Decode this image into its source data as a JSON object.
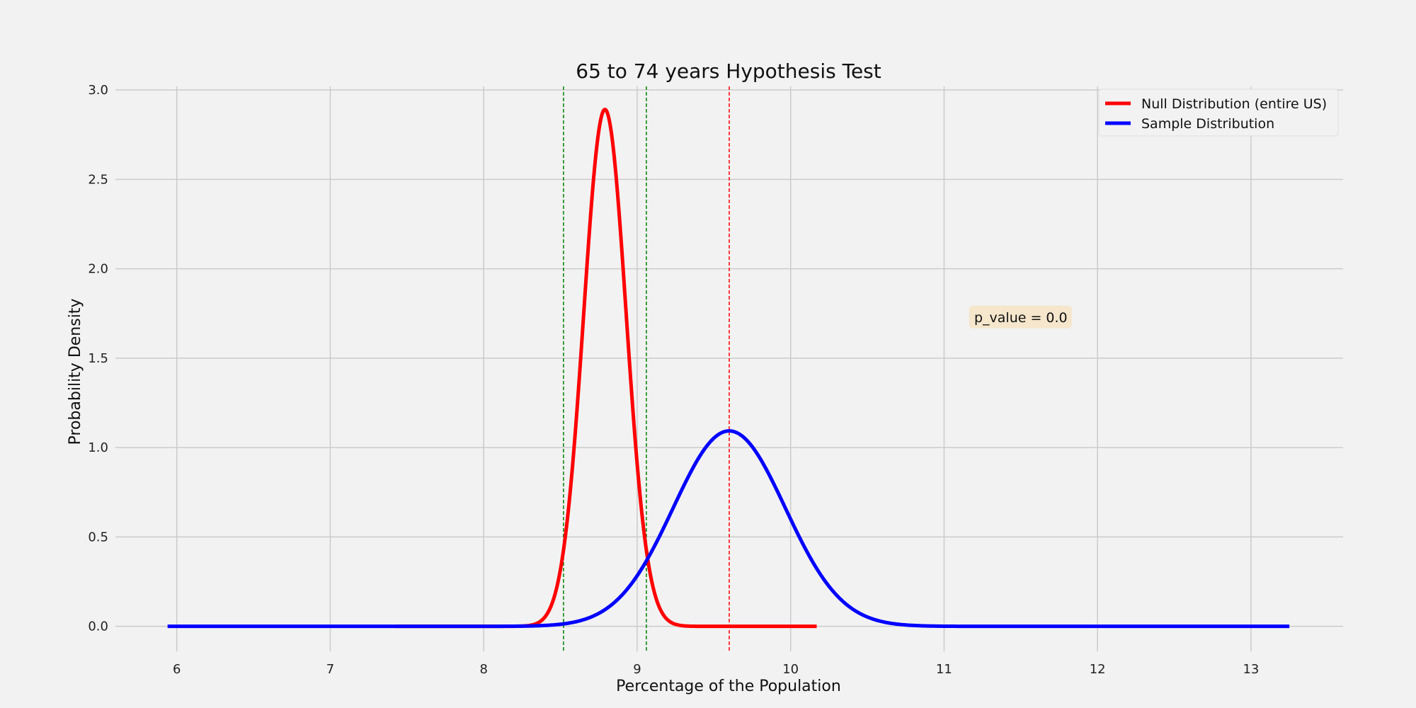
{
  "chart_data": {
    "type": "line",
    "title": "65 to 74 years Hypothesis Test",
    "xlabel": "Percentage of the Population",
    "ylabel": "Probability Density",
    "xlim": [
      5.6,
      13.6
    ],
    "ylim": [
      -0.14,
      3.02
    ],
    "xticks": [
      6,
      7,
      8,
      9,
      10,
      11,
      12,
      13
    ],
    "yticks": [
      0.0,
      0.5,
      1.0,
      1.5,
      2.0,
      2.5,
      3.0
    ],
    "xtick_labels": [
      "6",
      "7",
      "8",
      "9",
      "10",
      "11",
      "12",
      "13"
    ],
    "ytick_labels": [
      "0.0",
      "0.5",
      "1.0",
      "1.5",
      "2.0",
      "2.5",
      "3.0"
    ],
    "grid": true,
    "legend_position": "top-right",
    "series": [
      {
        "name": "Null Distribution (entire US)",
        "color": "#ff0000",
        "distribution": "normal",
        "mean": 8.79,
        "std": 0.138,
        "x_range": [
          7.42,
          10.17
        ]
      },
      {
        "name": "Sample Distribution",
        "color": "#0000ff",
        "distribution": "normal",
        "mean": 9.6,
        "std": 0.365,
        "x_range": [
          5.94,
          13.25
        ]
      }
    ],
    "vlines": [
      {
        "x": 8.52,
        "color": "#008000"
      },
      {
        "x": 9.06,
        "color": "#008000"
      },
      {
        "x": 9.6,
        "color": "#ff0000"
      }
    ],
    "annotation": {
      "text": "p_value = 0.0",
      "x": 11.5,
      "y": 1.73,
      "bg": "#f5e6cc"
    }
  }
}
